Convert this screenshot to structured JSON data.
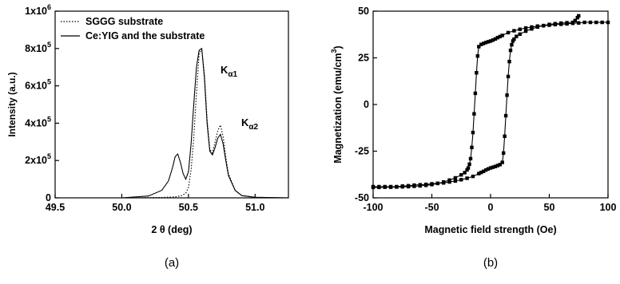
{
  "chart_data": [
    {
      "type": "line",
      "caption": "(a)",
      "xlabel": "2 θ (deg)",
      "ylabel": "Intensity (a.u.)",
      "xlim": [
        49.5,
        51.25
      ],
      "ylim": [
        0,
        1000000
      ],
      "xticks": [
        {
          "value": 49.5,
          "label": "49.5"
        },
        {
          "value": 50.0,
          "label": "50.0"
        },
        {
          "value": 50.5,
          "label": "50.5"
        },
        {
          "value": 51.0,
          "label": "51.0"
        }
      ],
      "yticks": [
        {
          "value": 0,
          "label": "0"
        },
        {
          "value": 200000,
          "label": "2x10",
          "exp": "5"
        },
        {
          "value": 400000,
          "label": "4x10",
          "exp": "5"
        },
        {
          "value": 600000,
          "label": "6x10",
          "exp": "5"
        },
        {
          "value": 800000,
          "label": "8x10",
          "exp": "5"
        },
        {
          "value": 1000000,
          "label": "1x10",
          "exp": "6"
        }
      ],
      "legend": [
        {
          "label": "SGGG substrate",
          "style": "dotted"
        },
        {
          "label": "Ce:YIG and the substrate",
          "style": "solid"
        }
      ],
      "annotations": [
        {
          "main": "K",
          "sub": "α1",
          "x": 50.63,
          "y": 770000
        },
        {
          "main": "K",
          "sub": "α2",
          "x": 50.76,
          "y": 430000
        }
      ],
      "series": [
        {
          "name": "SGGG substrate",
          "style": "dotted",
          "x": [
            49.5,
            50.0,
            50.3,
            50.4,
            50.45,
            50.48,
            50.5,
            50.52,
            50.54,
            50.56,
            50.58,
            50.6,
            50.62,
            50.64,
            50.66,
            50.68,
            50.7,
            50.72,
            50.74,
            50.76,
            50.78,
            50.8,
            50.85,
            50.9,
            51.0,
            51.25
          ],
          "y": [
            0,
            0,
            2000,
            5000,
            12000,
            25000,
            55000,
            150000,
            320000,
            560000,
            770000,
            800000,
            660000,
            420000,
            260000,
            240000,
            300000,
            360000,
            390000,
            330000,
            220000,
            130000,
            40000,
            12000,
            3000,
            0
          ]
        },
        {
          "name": "Ce:YIG and the substrate",
          "style": "solid",
          "x": [
            49.5,
            50.0,
            50.2,
            50.3,
            50.35,
            50.38,
            50.4,
            50.42,
            50.44,
            50.46,
            50.48,
            50.5,
            50.52,
            50.54,
            50.56,
            50.58,
            50.6,
            50.62,
            50.64,
            50.66,
            50.68,
            50.7,
            50.72,
            50.74,
            50.76,
            50.78,
            50.8,
            50.85,
            50.9,
            51.0,
            51.25
          ],
          "y": [
            0,
            0,
            10000,
            40000,
            90000,
            160000,
            220000,
            235000,
            190000,
            130000,
            100000,
            140000,
            290000,
            500000,
            700000,
            790000,
            800000,
            640000,
            400000,
            250000,
            230000,
            270000,
            320000,
            340000,
            290000,
            200000,
            120000,
            40000,
            12000,
            3000,
            0
          ]
        }
      ]
    },
    {
      "type": "line",
      "caption": "(b)",
      "xlabel": "Magnetic field strength (Oe)",
      "ylabel": "Magnetization (emu/cm",
      "ylabel_exp": "3",
      "ylabel_close": ")",
      "xlim": [
        -100,
        100
      ],
      "ylim": [
        -50,
        50
      ],
      "xticks": [
        {
          "value": -100,
          "label": "-100"
        },
        {
          "value": -50,
          "label": "-50"
        },
        {
          "value": 0,
          "label": "0"
        },
        {
          "value": 50,
          "label": "50"
        },
        {
          "value": 100,
          "label": "100"
        }
      ],
      "yticks": [
        {
          "value": -50,
          "label": "-50"
        },
        {
          "value": -25,
          "label": "-25"
        },
        {
          "value": 0,
          "label": "0"
        },
        {
          "value": 25,
          "label": "25"
        },
        {
          "value": 50,
          "label": "50"
        }
      ],
      "series": [
        {
          "name": "",
          "marker": "square",
          "x": [
            100,
            95,
            90,
            85,
            80,
            75,
            70,
            65,
            60,
            55,
            50,
            45,
            40,
            35,
            30,
            25,
            20,
            15,
            10,
            8,
            6,
            4,
            2,
            0,
            -2,
            -4,
            -6,
            -8,
            -10,
            -11,
            -12,
            -13,
            -14,
            -15,
            -16,
            -17,
            -18,
            -19,
            -20,
            -22,
            -25,
            -30,
            -35,
            -40,
            -45,
            -50,
            -55,
            -60,
            -65,
            -70,
            -75,
            -80,
            -85,
            -90,
            -95,
            -100
          ],
          "y": [
            44,
            44,
            44,
            44,
            44,
            43.7,
            43.5,
            43.2,
            43,
            42.8,
            42.5,
            42.2,
            42,
            41.5,
            41,
            40.3,
            39.5,
            38.5,
            37,
            36.4,
            35.8,
            35.1,
            34.5,
            34,
            33.6,
            33.2,
            32.7,
            32.2,
            31,
            26,
            17,
            6,
            -5,
            -15,
            -23,
            -29,
            -32,
            -34,
            -35,
            -36.5,
            -37.7,
            -39.3,
            -40.5,
            -41.5,
            -42.3,
            -42.9,
            -43.3,
            -43.6,
            -43.8,
            -44,
            -44.1,
            -44.2,
            -44.3,
            -44.3,
            -44.4,
            -44.4
          ]
        },
        {
          "name": "",
          "marker": "square",
          "x": [
            -100,
            -95,
            -90,
            -85,
            -80,
            -75,
            -70,
            -65,
            -60,
            -55,
            -50,
            -45,
            -40,
            -35,
            -30,
            -25,
            -20,
            -15,
            -10,
            -8,
            -6,
            -4,
            -2,
            0,
            2,
            4,
            6,
            8,
            10,
            11,
            12,
            13,
            14,
            15,
            16,
            17,
            18,
            19,
            20,
            22,
            25,
            30,
            35,
            40,
            45,
            50,
            55,
            60,
            65,
            70,
            72,
            74,
            75
          ],
          "y": [
            -44,
            -44,
            -44,
            -44,
            -44,
            -43.7,
            -43.5,
            -43.2,
            -43,
            -42.8,
            -42.5,
            -42.2,
            -42,
            -41.5,
            -41,
            -40.3,
            -39.5,
            -38.5,
            -37,
            -36.4,
            -35.8,
            -35.1,
            -34.5,
            -34,
            -33.6,
            -33.2,
            -32.7,
            -32.2,
            -31,
            -26,
            -17,
            -6,
            5,
            15,
            23,
            29,
            32,
            34,
            35,
            36.5,
            37.7,
            39.3,
            40.5,
            41.5,
            42.3,
            42.9,
            43.3,
            43.6,
            43.8,
            44,
            45,
            46.5,
            47.5
          ]
        }
      ]
    }
  ]
}
